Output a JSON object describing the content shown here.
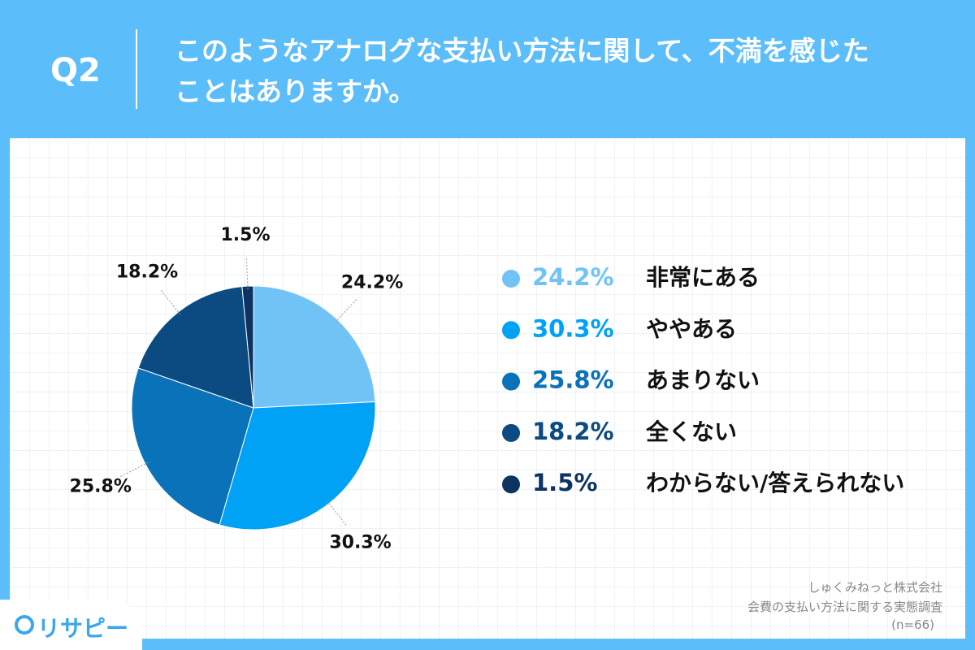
{
  "header": {
    "number": "Q2",
    "question_lines": [
      "このようなアナログな支払い方法に関して、不満を感じた",
      "ことはありますか。"
    ]
  },
  "chart_data": {
    "type": "pie",
    "categories": [
      "非常にある",
      "ややある",
      "あまりない",
      "全くない",
      "わからない/答えられない"
    ],
    "values": [
      24.2,
      30.3,
      25.8,
      18.2,
      1.5
    ],
    "value_labels": [
      "24.2%",
      "30.3%",
      "25.8%",
      "18.2%",
      "1.5%"
    ],
    "colors": [
      "#72c3f5",
      "#00a2f5",
      "#0a72b9",
      "#0b4b81",
      "#0d3363"
    ],
    "source": [
      "しゅくみねっと株式会社",
      "会費の支払い方法に関する実態調査",
      "(n=66)"
    ]
  },
  "logo": "リサピー"
}
